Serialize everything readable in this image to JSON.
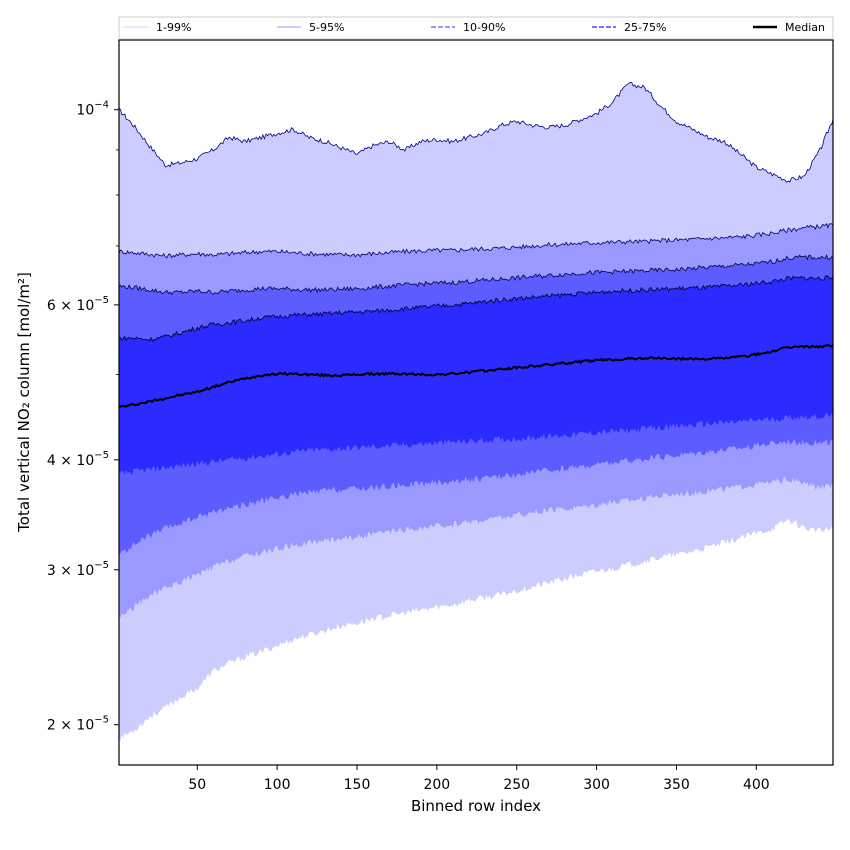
{
  "chart_data": {
    "type": "area",
    "title": "",
    "xlabel": "Binned row index",
    "ylabel": "Total vertical NO₂ column [mol/m²]",
    "y_scale": "log",
    "xlim": [
      1,
      448
    ],
    "ylim": [
      1.8e-05,
      0.00012
    ],
    "grid": false,
    "legend_position": "top",
    "x_ticks": [
      {
        "value": 50,
        "label": "50"
      },
      {
        "value": 100,
        "label": "100"
      },
      {
        "value": 150,
        "label": "150"
      },
      {
        "value": 200,
        "label": "200"
      },
      {
        "value": 250,
        "label": "250"
      },
      {
        "value": 300,
        "label": "300"
      },
      {
        "value": 350,
        "label": "350"
      },
      {
        "value": 400,
        "label": "400"
      }
    ],
    "y_ticks": [
      {
        "value": 2e-05,
        "label": "2 × 10",
        "exp": "−5"
      },
      {
        "value": 3e-05,
        "label": "3 × 10",
        "exp": "−5"
      },
      {
        "value": 4e-05,
        "label": "4 × 10",
        "exp": "−5"
      },
      {
        "value": 6e-05,
        "label": "6 × 10",
        "exp": "−5"
      },
      {
        "value": 0.0001,
        "label": "10",
        "exp": "−4"
      }
    ],
    "x": [
      1,
      10,
      20,
      30,
      40,
      50,
      60,
      70,
      80,
      90,
      100,
      110,
      120,
      130,
      140,
      150,
      160,
      170,
      180,
      190,
      200,
      210,
      220,
      230,
      240,
      250,
      260,
      270,
      280,
      290,
      300,
      310,
      320,
      330,
      340,
      350,
      360,
      370,
      380,
      390,
      400,
      410,
      420,
      430,
      440,
      448
    ],
    "bands": [
      {
        "name": "1-99%",
        "color": "#ccccff",
        "line_color": "#000080",
        "line_style": "solid",
        "lower": [
          1.93e-05,
          1.97e-05,
          2.04e-05,
          2.09e-05,
          2.15e-05,
          2.2e-05,
          2.3e-05,
          2.35e-05,
          2.39e-05,
          2.42e-05,
          2.46e-05,
          2.5e-05,
          2.53e-05,
          2.56e-05,
          2.59e-05,
          2.61e-05,
          2.64e-05,
          2.66e-05,
          2.68e-05,
          2.7e-05,
          2.72e-05,
          2.74e-05,
          2.77e-05,
          2.79e-05,
          2.81e-05,
          2.84e-05,
          2.87e-05,
          2.9e-05,
          2.93e-05,
          2.96e-05,
          2.99e-05,
          3.01e-05,
          3.04e-05,
          3.07e-05,
          3.1e-05,
          3.12e-05,
          3.15e-05,
          3.18e-05,
          3.22e-05,
          3.26e-05,
          3.3e-05,
          3.34e-05,
          3.42e-05,
          3.35e-05,
          3.32e-05,
          3.34e-05
        ],
        "upper": [
          0.0001,
          9.6e-05,
          9.1e-05,
          8.65e-05,
          8.7e-05,
          8.8e-05,
          9e-05,
          9.3e-05,
          9.2e-05,
          9.3e-05,
          9.4e-05,
          9.5e-05,
          9.3e-05,
          9.2e-05,
          9.05e-05,
          8.9e-05,
          9.1e-05,
          9.2e-05,
          9e-05,
          9.2e-05,
          9.25e-05,
          9.2e-05,
          9.3e-05,
          9.4e-05,
          9.6e-05,
          9.7e-05,
          9.6e-05,
          9.55e-05,
          9.6e-05,
          9.75e-05,
          9.9e-05,
          0.000102,
          0.000107,
          0.000106,
          0.000101,
          9.7e-05,
          9.5e-05,
          9.3e-05,
          9.2e-05,
          8.9e-05,
          8.6e-05,
          8.45e-05,
          8.3e-05,
          8.4e-05,
          9e-05,
          9.75e-05
        ]
      },
      {
        "name": "5-95%",
        "color": "#9999ff",
        "line_color": "#000060",
        "line_style": "solid",
        "lower": [
          2.65e-05,
          2.72e-05,
          2.8e-05,
          2.86e-05,
          2.91e-05,
          2.96e-05,
          3.02e-05,
          3.07e-05,
          3.11e-05,
          3.14e-05,
          3.17e-05,
          3.2e-05,
          3.22e-05,
          3.24e-05,
          3.26e-05,
          3.27e-05,
          3.29e-05,
          3.31e-05,
          3.33e-05,
          3.34e-05,
          3.36e-05,
          3.38e-05,
          3.4e-05,
          3.42e-05,
          3.44e-05,
          3.46e-05,
          3.48e-05,
          3.5e-05,
          3.52e-05,
          3.54e-05,
          3.56e-05,
          3.58e-05,
          3.6e-05,
          3.62e-05,
          3.64e-05,
          3.66e-05,
          3.67e-05,
          3.69e-05,
          3.71e-05,
          3.73e-05,
          3.75e-05,
          3.77e-05,
          3.8e-05,
          3.76e-05,
          3.72e-05,
          3.74e-05
        ],
        "upper": [
          6.9e-05,
          6.88e-05,
          6.85e-05,
          6.82e-05,
          6.84e-05,
          6.86e-05,
          6.84e-05,
          6.86e-05,
          6.88e-05,
          6.9e-05,
          6.9e-05,
          6.88e-05,
          6.86e-05,
          6.85e-05,
          6.84e-05,
          6.84e-05,
          6.86e-05,
          6.88e-05,
          6.9e-05,
          6.91e-05,
          6.92e-05,
          6.92e-05,
          6.94e-05,
          6.95e-05,
          6.96e-05,
          6.98e-05,
          7e-05,
          7.02e-05,
          7.03e-05,
          7.05e-05,
          7.06e-05,
          7.07e-05,
          7.08e-05,
          7.08e-05,
          7.1e-05,
          7.11e-05,
          7.12e-05,
          7.14e-05,
          7.15e-05,
          7.17e-05,
          7.2e-05,
          7.24e-05,
          7.3e-05,
          7.34e-05,
          7.37e-05,
          7.39e-05
        ]
      },
      {
        "name": "10-90%",
        "color": "#5c5cff",
        "line_color": "#000040",
        "line_style": "dashed",
        "lower": [
          3.12e-05,
          3.2e-05,
          3.28e-05,
          3.34e-05,
          3.39e-05,
          3.44e-05,
          3.49e-05,
          3.53e-05,
          3.56e-05,
          3.59e-05,
          3.62e-05,
          3.65e-05,
          3.67e-05,
          3.69e-05,
          3.7e-05,
          3.71e-05,
          3.72e-05,
          3.73e-05,
          3.75e-05,
          3.76e-05,
          3.77e-05,
          3.78e-05,
          3.8e-05,
          3.81e-05,
          3.83e-05,
          3.85e-05,
          3.87e-05,
          3.89e-05,
          3.91e-05,
          3.93e-05,
          3.95e-05,
          3.97e-05,
          3.99e-05,
          4.01e-05,
          4.03e-05,
          4.05e-05,
          4.07e-05,
          4.09e-05,
          4.11e-05,
          4.13e-05,
          4.15e-05,
          4.18e-05,
          4.2e-05,
          4.19e-05,
          4.18e-05,
          4.19e-05
        ],
        "upper": [
          6.3e-05,
          6.28e-05,
          6.24e-05,
          6.2e-05,
          6.2e-05,
          6.22e-05,
          6.2e-05,
          6.22e-05,
          6.24e-05,
          6.26e-05,
          6.26e-05,
          6.25e-05,
          6.24e-05,
          6.24e-05,
          6.25e-05,
          6.26e-05,
          6.28e-05,
          6.3e-05,
          6.32e-05,
          6.34e-05,
          6.35e-05,
          6.36e-05,
          6.38e-05,
          6.4e-05,
          6.42e-05,
          6.44e-05,
          6.46e-05,
          6.48e-05,
          6.5e-05,
          6.52e-05,
          6.53e-05,
          6.54e-05,
          6.55e-05,
          6.56e-05,
          6.57e-05,
          6.58e-05,
          6.6e-05,
          6.62e-05,
          6.64e-05,
          6.66e-05,
          6.68e-05,
          6.72e-05,
          6.78e-05,
          6.8e-05,
          6.79e-05,
          6.8e-05
        ]
      },
      {
        "name": "25-75%",
        "color": "#2b2bff",
        "line_color": "#000020",
        "line_style": "dashed",
        "lower": [
          3.85e-05,
          3.88e-05,
          3.9e-05,
          3.92e-05,
          3.94e-05,
          3.96e-05,
          3.98e-05,
          4e-05,
          4.02e-05,
          4.04e-05,
          4.06e-05,
          4.08e-05,
          4.1e-05,
          4.11e-05,
          4.12e-05,
          4.13e-05,
          4.14e-05,
          4.15e-05,
          4.16e-05,
          4.17e-05,
          4.18e-05,
          4.19e-05,
          4.2e-05,
          4.21e-05,
          4.22e-05,
          4.23e-05,
          4.24e-05,
          4.25e-05,
          4.27e-05,
          4.28e-05,
          4.3e-05,
          4.31e-05,
          4.32e-05,
          4.34e-05,
          4.35e-05,
          4.37e-05,
          4.38e-05,
          4.4e-05,
          4.41e-05,
          4.42e-05,
          4.44e-05,
          4.45e-05,
          4.47e-05,
          4.48e-05,
          4.48e-05,
          4.5e-05
        ],
        "upper": [
          5.5e-05,
          5.5e-05,
          5.48e-05,
          5.52e-05,
          5.58e-05,
          5.65e-05,
          5.7e-05,
          5.73e-05,
          5.76e-05,
          5.8e-05,
          5.82e-05,
          5.84e-05,
          5.85e-05,
          5.86e-05,
          5.88e-05,
          5.89e-05,
          5.9e-05,
          5.92e-05,
          5.94e-05,
          5.96e-05,
          5.98e-05,
          6e-05,
          6.02e-05,
          6.05e-05,
          6.08e-05,
          6.1e-05,
          6.12e-05,
          6.14e-05,
          6.16e-05,
          6.18e-05,
          6.2e-05,
          6.22e-05,
          6.23e-05,
          6.24e-05,
          6.25e-05,
          6.26e-05,
          6.27e-05,
          6.28e-05,
          6.3e-05,
          6.32e-05,
          6.35e-05,
          6.38e-05,
          6.43e-05,
          6.44e-05,
          6.43e-05,
          6.44e-05
        ]
      }
    ],
    "median": {
      "name": "Median",
      "color": "#000000",
      "values": [
        4.59e-05,
        4.62e-05,
        4.66e-05,
        4.7e-05,
        4.74e-05,
        4.78e-05,
        4.84e-05,
        4.9e-05,
        4.95e-05,
        4.99e-05,
        5.01e-05,
        5.01e-05,
        5e-05,
        4.99e-05,
        4.99e-05,
        5e-05,
        5.01e-05,
        5.01e-05,
        5.01e-05,
        5e-05,
        5e-05,
        5.01e-05,
        5.03e-05,
        5.05e-05,
        5.07e-05,
        5.09e-05,
        5.11e-05,
        5.13e-05,
        5.15e-05,
        5.17e-05,
        5.19e-05,
        5.2e-05,
        5.21e-05,
        5.22e-05,
        5.22e-05,
        5.21e-05,
        5.21e-05,
        5.21e-05,
        5.22e-05,
        5.24e-05,
        5.27e-05,
        5.31e-05,
        5.37e-05,
        5.38e-05,
        5.38e-05,
        5.4e-05
      ]
    },
    "legend": [
      {
        "label": "1-99%",
        "color": "#ccccff",
        "style": "solid"
      },
      {
        "label": "5-95%",
        "color": "#9999ff",
        "style": "solid"
      },
      {
        "label": "10-90%",
        "color": "#7777ff",
        "style": "dashed"
      },
      {
        "label": "25-75%",
        "color": "#4444ff",
        "style": "dashed"
      },
      {
        "label": "Median",
        "color": "#000000",
        "style": "solid-thick"
      }
    ]
  }
}
